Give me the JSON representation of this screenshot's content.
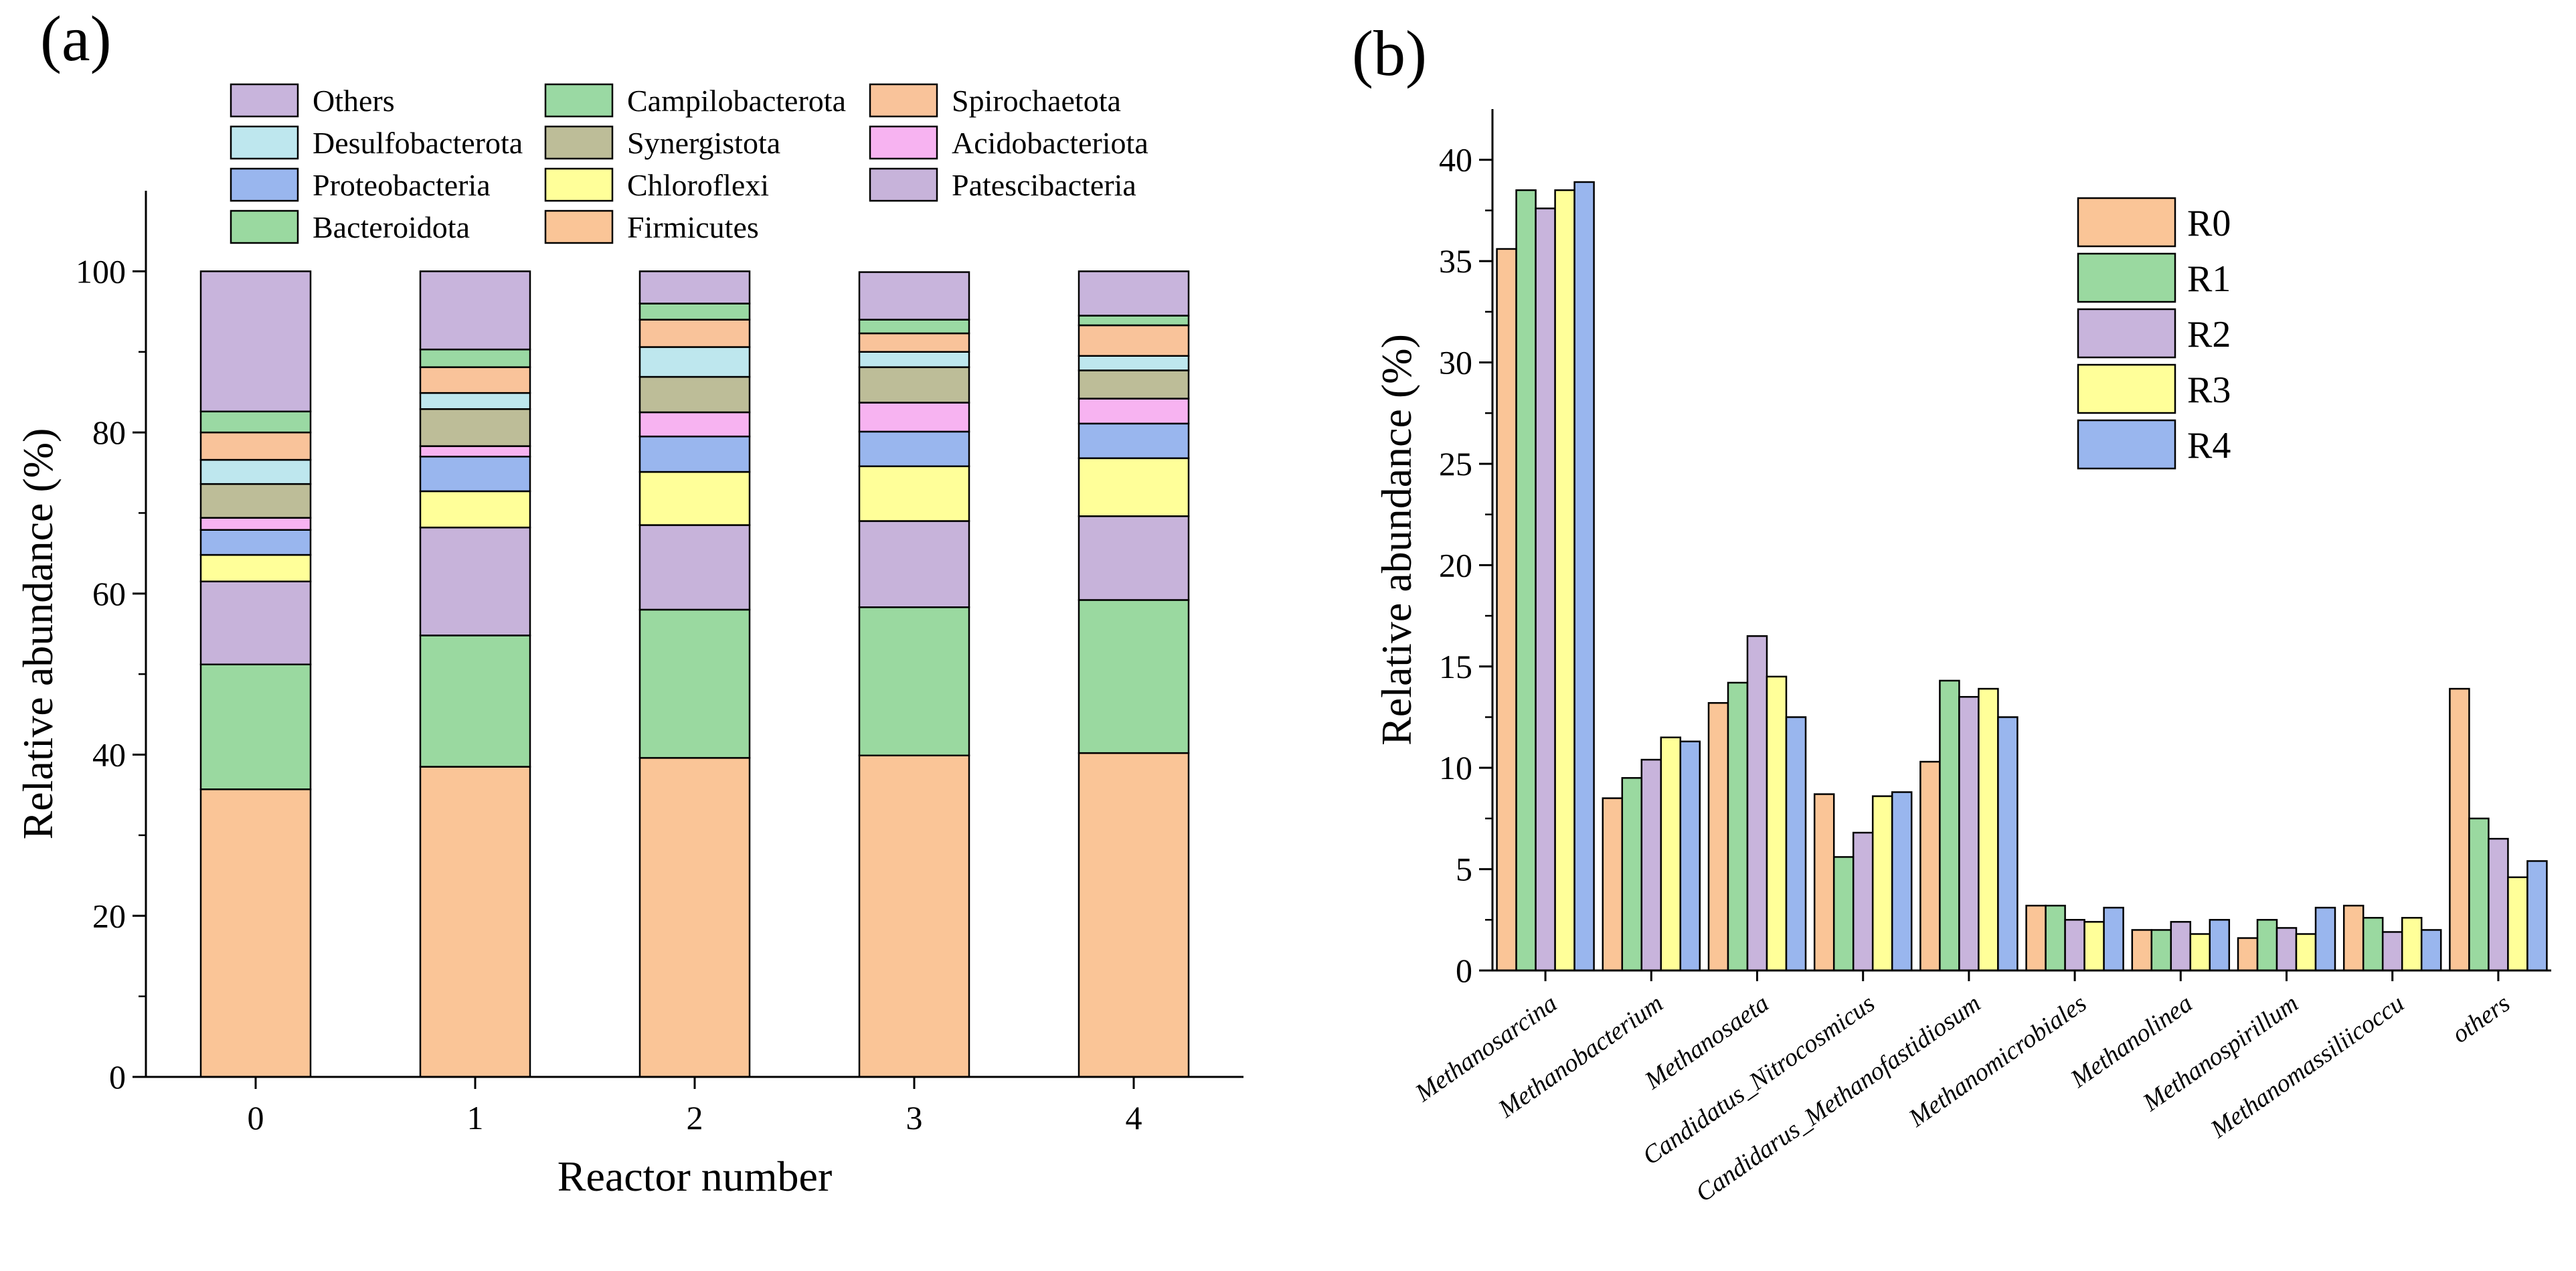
{
  "colors": {
    "Others": "#C8B4DC",
    "Campilobacterota": "#9AD9A3",
    "Spirochaetota": "#F9C39A",
    "Desulfobacterota": "#BEE7EE",
    "Synergistota": "#BDBD98",
    "Acidobacteriota": "#F7B3F1",
    "Proteobacteria": "#99B6EE",
    "Chloroflexi": "#FFFF99",
    "Patescibacteria": "#C7B3DA",
    "Bacteroidota": "#9AD9A0",
    "Firmicutes": "#FAC597",
    "R0": "#FAC597",
    "R1": "#9AD9A0",
    "R2": "#C8B4DC",
    "R3": "#FFFF99",
    "R4": "#99B6EE"
  },
  "chart_data": [
    {
      "panel": "(a)",
      "type": "bar",
      "stacked": true,
      "xlabel": "Reactor number",
      "ylabel": "Relative abundance (%)",
      "ylim": [
        0,
        110
      ],
      "yticks": [
        0,
        20,
        40,
        60,
        80,
        100
      ],
      "categories": [
        "0",
        "1",
        "2",
        "3",
        "4"
      ],
      "legend_order": [
        "Others",
        "Campilobacterota",
        "Spirochaetota",
        "Desulfobacterota",
        "Synergistota",
        "Acidobacteriota",
        "Proteobacteria",
        "Chloroflexi",
        "Patescibacteria",
        "Bacteroidota",
        "Firmicutes"
      ],
      "series": [
        {
          "name": "Firmicutes",
          "values": [
            35.7,
            38.5,
            39.6,
            39.9,
            40.2
          ]
        },
        {
          "name": "Bacteroidota",
          "values": [
            15.5,
            16.3,
            18.4,
            18.4,
            19.0
          ]
        },
        {
          "name": "Patescibacteria",
          "values": [
            10.3,
            13.4,
            10.5,
            10.7,
            10.4
          ]
        },
        {
          "name": "Chloroflexi",
          "values": [
            3.3,
            4.5,
            6.6,
            6.8,
            7.2
          ]
        },
        {
          "name": "Proteobacteria",
          "values": [
            3.1,
            4.3,
            4.4,
            4.3,
            4.3
          ]
        },
        {
          "name": "Acidobacteriota",
          "values": [
            1.5,
            1.3,
            3.0,
            3.6,
            3.1
          ]
        },
        {
          "name": "Synergistota",
          "values": [
            4.2,
            4.6,
            4.4,
            4.4,
            3.5
          ]
        },
        {
          "name": "Desulfobacterota",
          "values": [
            3.0,
            2.0,
            3.7,
            1.9,
            1.8
          ]
        },
        {
          "name": "Spirochaetota",
          "values": [
            3.4,
            3.2,
            3.4,
            2.3,
            3.8
          ]
        },
        {
          "name": "Campilobacterota",
          "values": [
            2.6,
            2.2,
            2.0,
            1.7,
            1.2
          ]
        },
        {
          "name": "Others",
          "values": [
            17.4,
            9.7,
            4.0,
            5.9,
            5.5
          ]
        }
      ]
    },
    {
      "panel": "(b)",
      "type": "bar",
      "stacked": false,
      "xlabel": "",
      "ylabel": "Relative abundance (%)",
      "ylim": [
        0,
        42.5
      ],
      "yticks": [
        0,
        5,
        10,
        15,
        20,
        25,
        30,
        35,
        40
      ],
      "categories": [
        "Methanosarcina",
        "Methanobacterium",
        "Methanosaeta",
        "Candidatus_Nitrocosmicus",
        "Candidarus_Methanofastidiosum",
        "Methanomicrobiales",
        "Methanolinea",
        "Methanospirillum",
        "Methanomassiliicoccu",
        "others"
      ],
      "series": [
        {
          "name": "R0",
          "values": [
            35.6,
            8.5,
            13.2,
            8.7,
            10.3,
            3.2,
            2.0,
            1.6,
            3.2,
            13.9
          ]
        },
        {
          "name": "R1",
          "values": [
            38.5,
            9.5,
            14.2,
            5.6,
            14.3,
            3.2,
            2.0,
            2.5,
            2.6,
            7.5
          ]
        },
        {
          "name": "R2",
          "values": [
            37.6,
            10.4,
            16.5,
            6.8,
            13.5,
            2.5,
            2.4,
            2.1,
            1.9,
            6.5
          ]
        },
        {
          "name": "R3",
          "values": [
            38.5,
            11.5,
            14.5,
            8.6,
            13.9,
            2.4,
            1.8,
            1.8,
            2.6,
            4.6
          ]
        },
        {
          "name": "R4",
          "values": [
            38.9,
            11.3,
            12.5,
            8.8,
            12.5,
            3.1,
            2.5,
            3.1,
            2.0,
            5.4
          ]
        }
      ]
    }
  ]
}
